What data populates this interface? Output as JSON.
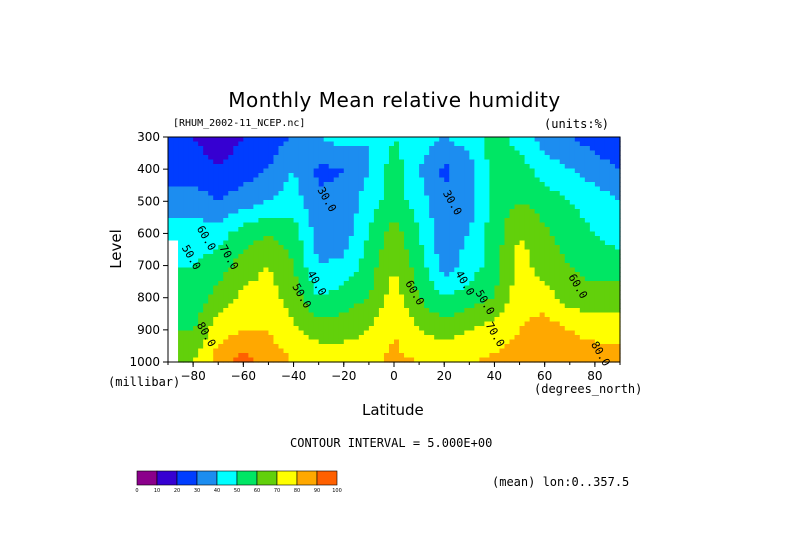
{
  "title": "Monthly Mean relative humidity",
  "file_label": "[RHUM_2002-11_NCEP.nc]",
  "units_label": "(units:%)",
  "contour_interval_label": "CONTOUR INTERVAL = 5.000E+00",
  "mean_label": "(mean) lon:0..357.5",
  "colors": {
    "levels": [
      "#8b008b",
      "#3600d2",
      "#003dff",
      "#1c8df0",
      "#00ffff",
      "#00e664",
      "#62d00b",
      "#ffff00",
      "#ffa800",
      "#ff6000",
      "#e00000"
    ]
  },
  "chart_data": {
    "type": "heatmap",
    "title": "Monthly Mean relative humidity",
    "xlabel": "Latitude",
    "xunit": "(degrees_north)",
    "ylabel": "Level",
    "yunit": "(millibar)",
    "xlim": [
      -90,
      90
    ],
    "ylim": [
      1000,
      300
    ],
    "xticks": [
      -80,
      -60,
      -40,
      -20,
      0,
      20,
      40,
      60,
      80
    ],
    "yticks": [
      300,
      400,
      500,
      600,
      700,
      800,
      900,
      1000
    ],
    "contour_interval": 5,
    "latitudes": [
      -90,
      -80,
      -70,
      -60,
      -50,
      -40,
      -30,
      -20,
      -10,
      0,
      10,
      20,
      30,
      40,
      50,
      60,
      70,
      80,
      90
    ],
    "levels": [
      300,
      400,
      500,
      600,
      700,
      800,
      900,
      1000
    ],
    "values": [
      [
        null,
        20,
        15,
        20,
        25,
        30,
        40,
        45,
        40,
        50,
        45,
        40,
        45,
        55,
        45,
        35,
        30,
        25,
        20
      ],
      [
        null,
        25,
        20,
        25,
        30,
        40,
        28,
        30,
        40,
        55,
        40,
        28,
        35,
        55,
        55,
        45,
        40,
        35,
        30
      ],
      [
        null,
        35,
        30,
        35,
        40,
        45,
        32,
        32,
        45,
        55,
        45,
        32,
        35,
        55,
        60,
        55,
        50,
        45,
        40
      ],
      [
        null,
        45,
        45,
        55,
        60,
        55,
        35,
        35,
        50,
        65,
        50,
        33,
        40,
        55,
        70,
        62,
        55,
        50,
        45
      ],
      [
        null,
        50,
        55,
        65,
        70,
        60,
        40,
        42,
        55,
        70,
        55,
        35,
        45,
        55,
        75,
        65,
        60,
        55,
        55
      ],
      [
        null,
        52,
        65,
        72,
        75,
        65,
        50,
        55,
        60,
        75,
        60,
        50,
        55,
        60,
        75,
        75,
        65,
        65,
        65
      ],
      [
        null,
        60,
        75,
        80,
        80,
        72,
        65,
        65,
        70,
        80,
        70,
        65,
        70,
        75,
        80,
        85,
        80,
        75,
        75
      ],
      [
        null,
        70,
        85,
        95,
        85,
        80,
        78,
        78,
        78,
        82,
        80,
        80,
        80,
        82,
        85,
        90,
        88,
        88,
        88
      ]
    ],
    "contour_labels": [
      {
        "text": "30.0",
        "lat": -28,
        "lev": 500
      },
      {
        "text": "30.0",
        "lat": 22,
        "lev": 510
      },
      {
        "text": "40.0",
        "lat": -32,
        "lev": 760
      },
      {
        "text": "40.0",
        "lat": 27,
        "lev": 760
      },
      {
        "text": "50.0",
        "lat": -38,
        "lev": 800
      },
      {
        "text": "50.0",
        "lat": 35,
        "lev": 820
      },
      {
        "text": "50.0",
        "lat": -82,
        "lev": 680
      },
      {
        "text": "60.0",
        "lat": -76,
        "lev": 620
      },
      {
        "text": "60.0",
        "lat": 7,
        "lev": 790
      },
      {
        "text": "60.0",
        "lat": 72,
        "lev": 770
      },
      {
        "text": "70.0",
        "lat": -67,
        "lev": 680
      },
      {
        "text": "70.0",
        "lat": 39,
        "lev": 920
      },
      {
        "text": "80.0",
        "lat": -76,
        "lev": 920
      },
      {
        "text": "80.0",
        "lat": 81,
        "lev": 980
      }
    ]
  },
  "colorbar": {
    "labels": [
      "0",
      "10",
      "20",
      "30",
      "40",
      "50",
      "60",
      "70",
      "80",
      "90",
      "100"
    ]
  }
}
